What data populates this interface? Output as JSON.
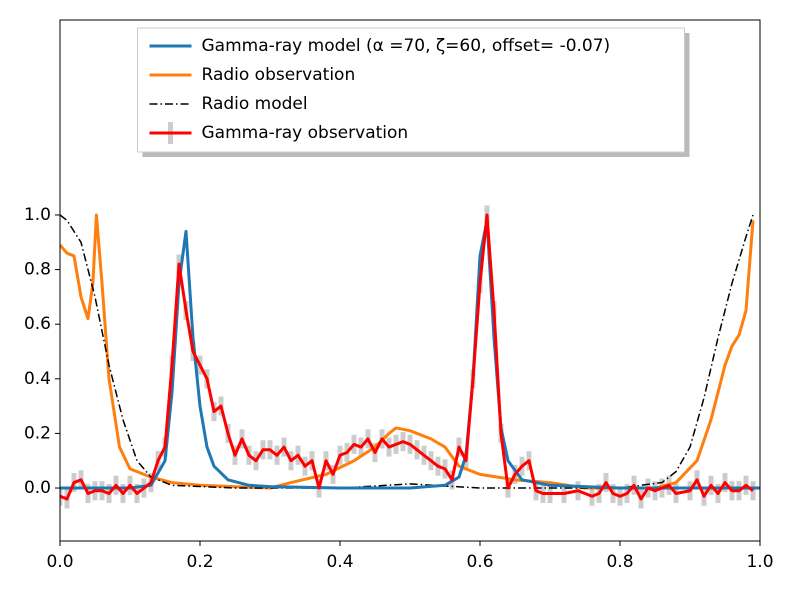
{
  "chart_data": {
    "type": "line",
    "legend_labels": [
      "Gamma-ray model (α =70, ζ=60, offset= -0.07)",
      "Radio observation",
      "Radio model",
      "Gamma-ray observation"
    ],
    "legend": "upper center",
    "xlim": [
      0,
      1
    ],
    "ylim": [
      -0.194,
      1.714
    ],
    "xticks": [
      {
        "value": 0,
        "label": "0.0"
      },
      {
        "value": 0.2,
        "label": "0.2"
      },
      {
        "value": 0.4,
        "label": "0.4"
      },
      {
        "value": 0.6,
        "label": "0.6"
      },
      {
        "value": 0.8,
        "label": "0.8"
      },
      {
        "value": 1,
        "label": "1.0"
      }
    ],
    "yticks": [
      {
        "value": 0,
        "label": "0.0"
      },
      {
        "value": 0.2,
        "label": "0.2"
      },
      {
        "value": 0.4,
        "label": "0.4"
      },
      {
        "value": 0.6,
        "label": "0.6"
      },
      {
        "value": 0.8,
        "label": "0.8"
      },
      {
        "value": 1,
        "label": "1.0"
      }
    ],
    "series": [
      {
        "name": "Gamma-ray model",
        "color": "#1f77b4",
        "style": "solid",
        "x": [
          0,
          0.1,
          0.13,
          0.15,
          0.16,
          0.17,
          0.18,
          0.19,
          0.2,
          0.21,
          0.22,
          0.24,
          0.27,
          0.3,
          0.4,
          0.5,
          0.55,
          0.57,
          0.58,
          0.59,
          0.6,
          0.61,
          0.62,
          0.63,
          0.64,
          0.66,
          0.7,
          0.8,
          1.0
        ],
        "values": [
          0,
          0,
          0.01,
          0.1,
          0.35,
          0.75,
          0.94,
          0.55,
          0.3,
          0.15,
          0.08,
          0.03,
          0.01,
          0.005,
          0,
          0,
          0.01,
          0.04,
          0.12,
          0.4,
          0.85,
          0.98,
          0.55,
          0.22,
          0.1,
          0.03,
          0.01,
          0,
          0
        ]
      },
      {
        "name": "Radio observation",
        "color": "#ff7f0e",
        "style": "solid",
        "x": [
          0,
          0.01,
          0.02,
          0.03,
          0.04,
          0.047,
          0.052,
          0.06,
          0.07,
          0.085,
          0.1,
          0.13,
          0.16,
          0.2,
          0.3,
          0.33,
          0.38,
          0.42,
          0.45,
          0.47,
          0.48,
          0.5,
          0.53,
          0.55,
          0.57,
          0.6,
          0.65,
          0.7,
          0.75,
          0.85,
          0.88,
          0.91,
          0.93,
          0.95,
          0.96,
          0.97,
          0.98,
          0.99
        ],
        "values": [
          0.89,
          0.86,
          0.85,
          0.7,
          0.62,
          0.75,
          1.0,
          0.75,
          0.4,
          0.15,
          0.07,
          0.04,
          0.02,
          0.01,
          0,
          0.02,
          0.05,
          0.1,
          0.15,
          0.2,
          0.22,
          0.21,
          0.18,
          0.15,
          0.08,
          0.05,
          0.03,
          0.02,
          0,
          0,
          0.02,
          0.1,
          0.25,
          0.45,
          0.52,
          0.56,
          0.65,
          0.98
        ]
      },
      {
        "name": "Radio model",
        "color": "#000000",
        "style": "dashdot",
        "x": [
          0,
          0.01,
          0.03,
          0.05,
          0.07,
          0.09,
          0.11,
          0.13,
          0.16,
          0.25,
          0.4,
          0.5,
          0.6,
          0.8,
          0.86,
          0.88,
          0.9,
          0.92,
          0.94,
          0.96,
          0.98,
          0.99
        ],
        "values": [
          1.0,
          0.98,
          0.9,
          0.7,
          0.45,
          0.25,
          0.1,
          0.04,
          0.01,
          0,
          0,
          0.015,
          0,
          0,
          0.02,
          0.06,
          0.15,
          0.33,
          0.55,
          0.75,
          0.92,
          1.0
        ]
      },
      {
        "name": "Gamma-ray observation",
        "color": "#ff0000",
        "style": "solid",
        "error": 0.035,
        "error_color": "#cccccc",
        "x": [
          0,
          0.01,
          0.02,
          0.03,
          0.04,
          0.05,
          0.06,
          0.07,
          0.08,
          0.09,
          0.1,
          0.11,
          0.12,
          0.13,
          0.14,
          0.15,
          0.16,
          0.17,
          0.18,
          0.19,
          0.2,
          0.21,
          0.22,
          0.23,
          0.24,
          0.25,
          0.26,
          0.27,
          0.28,
          0.29,
          0.3,
          0.31,
          0.32,
          0.33,
          0.34,
          0.35,
          0.36,
          0.37,
          0.38,
          0.39,
          0.4,
          0.41,
          0.42,
          0.43,
          0.44,
          0.45,
          0.46,
          0.47,
          0.48,
          0.49,
          0.5,
          0.51,
          0.52,
          0.53,
          0.54,
          0.55,
          0.56,
          0.57,
          0.58,
          0.59,
          0.6,
          0.61,
          0.62,
          0.63,
          0.64,
          0.65,
          0.66,
          0.67,
          0.68,
          0.69,
          0.7,
          0.72,
          0.74,
          0.76,
          0.77,
          0.78,
          0.79,
          0.8,
          0.81,
          0.82,
          0.83,
          0.84,
          0.85,
          0.86,
          0.87,
          0.88,
          0.9,
          0.91,
          0.92,
          0.93,
          0.94,
          0.95,
          0.96,
          0.97,
          0.98,
          0.99
        ],
        "values": [
          -0.03,
          -0.04,
          0.02,
          0.03,
          -0.02,
          -0.01,
          -0.01,
          -0.02,
          0.01,
          -0.02,
          0.01,
          -0.02,
          0.0,
          0.02,
          0.1,
          0.15,
          0.45,
          0.82,
          0.65,
          0.5,
          0.45,
          0.4,
          0.28,
          0.3,
          0.2,
          0.12,
          0.18,
          0.12,
          0.1,
          0.14,
          0.14,
          0.12,
          0.15,
          0.1,
          0.12,
          0.08,
          0.1,
          0.0,
          0.1,
          0.05,
          0.12,
          0.13,
          0.16,
          0.15,
          0.18,
          0.13,
          0.18,
          0.15,
          0.16,
          0.17,
          0.16,
          0.14,
          0.12,
          0.1,
          0.08,
          0.07,
          0.03,
          0.15,
          0.1,
          0.4,
          0.75,
          1.0,
          0.65,
          0.2,
          0.0,
          0.05,
          0.08,
          0.1,
          -0.01,
          -0.02,
          -0.02,
          -0.02,
          -0.01,
          -0.03,
          -0.02,
          0.02,
          -0.02,
          -0.03,
          -0.02,
          0.01,
          -0.04,
          0.0,
          -0.01,
          0.0,
          0.01,
          -0.02,
          -0.01,
          0.03,
          -0.03,
          0.01,
          -0.02,
          0.02,
          -0.01,
          -0.01,
          0.01,
          -0.01
        ]
      }
    ]
  }
}
